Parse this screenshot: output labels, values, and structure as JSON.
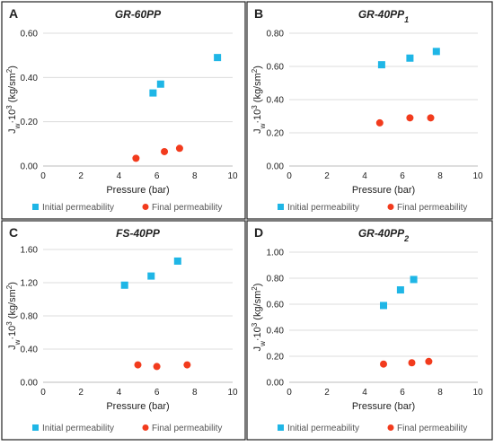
{
  "chart_data": [
    {
      "type": "scatter",
      "panel_label": "A",
      "title": "GR-60PP",
      "title_sub": "",
      "xlabel": "Pressure (bar)",
      "ylabel": "Jw·10³ (kg/sm²)",
      "ylabel_parts": {
        "main": "J",
        "sub": "w",
        "mid": "·10",
        "sup1": "3",
        "rest": " (kg/sm",
        "sup2": "2",
        "end": ")"
      },
      "xlim": [
        0,
        10
      ],
      "ylim": [
        0,
        0.6
      ],
      "xticks": [
        0,
        2,
        4,
        6,
        8,
        10
      ],
      "yticks": [
        0,
        0.2,
        0.4,
        0.6
      ],
      "xtick_labels": [
        "0",
        "2",
        "4",
        "6",
        "8",
        "10"
      ],
      "ytick_labels": [
        "0.00",
        "0.20",
        "0.40",
        "0.60"
      ],
      "series": [
        {
          "name": "Initial permeability",
          "marker": "square",
          "color": "#1fb6e6",
          "points": [
            [
              5.8,
              0.33
            ],
            [
              6.2,
              0.37
            ],
            [
              9.2,
              0.49
            ]
          ]
        },
        {
          "name": "Final permeability",
          "marker": "circle",
          "color": "#f23b1d",
          "points": [
            [
              4.9,
              0.035
            ],
            [
              6.4,
              0.065
            ],
            [
              7.2,
              0.08
            ]
          ]
        }
      ],
      "grid": "horizontal",
      "legend_position": "bottom"
    },
    {
      "type": "scatter",
      "panel_label": "B",
      "title": "GR-40PP",
      "title_sub": "1",
      "xlabel": "Pressure (bar)",
      "ylabel": "Jw·10³ (kg/sm²)",
      "ylabel_parts": {
        "main": "J",
        "sub": "w",
        "mid": "·10",
        "sup1": "3",
        "rest": " (kg/sm",
        "sup2": "2",
        "end": ")"
      },
      "xlim": [
        0,
        10
      ],
      "ylim": [
        0,
        0.8
      ],
      "xticks": [
        0,
        2,
        4,
        6,
        8,
        10
      ],
      "yticks": [
        0,
        0.2,
        0.4,
        0.6,
        0.8
      ],
      "xtick_labels": [
        "0",
        "2",
        "4",
        "6",
        "8",
        "10"
      ],
      "ytick_labels": [
        "0.00",
        "0.20",
        "0.40",
        "0.60",
        "0.80"
      ],
      "series": [
        {
          "name": "Initial permeability",
          "marker": "square",
          "color": "#1fb6e6",
          "points": [
            [
              4.9,
              0.61
            ],
            [
              6.4,
              0.65
            ],
            [
              7.8,
              0.69
            ]
          ]
        },
        {
          "name": "Final permeability",
          "marker": "circle",
          "color": "#f23b1d",
          "points": [
            [
              4.8,
              0.26
            ],
            [
              6.4,
              0.29
            ],
            [
              7.5,
              0.29
            ]
          ]
        }
      ],
      "grid": "horizontal",
      "legend_position": "bottom"
    },
    {
      "type": "scatter",
      "panel_label": "C",
      "title": "FS-40PP",
      "title_sub": "",
      "xlabel": "Pressure (bar)",
      "ylabel": "Jw·10³ (kg/sm²)",
      "ylabel_parts": {
        "main": "J",
        "sub": "w",
        "mid": "·10",
        "sup1": "3",
        "rest": " (kg/sm",
        "sup2": "2",
        "end": ")"
      },
      "xlim": [
        0,
        10
      ],
      "ylim": [
        0,
        1.6
      ],
      "xticks": [
        0,
        2,
        4,
        6,
        8,
        10
      ],
      "yticks": [
        0,
        0.4,
        0.8,
        1.2,
        1.6
      ],
      "xtick_labels": [
        "0",
        "2",
        "4",
        "6",
        "8",
        "10"
      ],
      "ytick_labels": [
        "0.00",
        "0.40",
        "0.80",
        "1.20",
        "1.60"
      ],
      "series": [
        {
          "name": "Initial permeability",
          "marker": "square",
          "color": "#1fb6e6",
          "points": [
            [
              4.3,
              1.17
            ],
            [
              5.7,
              1.28
            ],
            [
              7.1,
              1.46
            ]
          ]
        },
        {
          "name": "Final permeability",
          "marker": "circle",
          "color": "#f23b1d",
          "points": [
            [
              5.0,
              0.21
            ],
            [
              6.0,
              0.19
            ],
            [
              7.6,
              0.21
            ]
          ]
        }
      ],
      "grid": "horizontal",
      "legend_position": "bottom"
    },
    {
      "type": "scatter",
      "panel_label": "D",
      "title": "GR-40PP",
      "title_sub": "2",
      "xlabel": "Pressure (bar)",
      "ylabel": "Jw·10³ (kg/sm²)",
      "ylabel_parts": {
        "main": "J",
        "sub": "w",
        "mid": "·10",
        "sup1": "3",
        "rest": " (kg/sm",
        "sup2": "2",
        "end": ")"
      },
      "xlim": [
        0,
        10
      ],
      "ylim": [
        0,
        1.0
      ],
      "xticks": [
        0,
        2,
        4,
        6,
        8,
        10
      ],
      "yticks": [
        0,
        0.2,
        0.4,
        0.6,
        0.8,
        1.0
      ],
      "xtick_labels": [
        "0",
        "2",
        "4",
        "6",
        "8",
        "10"
      ],
      "ytick_labels": [
        "0.00",
        "0.20",
        "0.40",
        "0.60",
        "0.80",
        "1.00"
      ],
      "series": [
        {
          "name": "Initial permeability",
          "marker": "square",
          "color": "#1fb6e6",
          "points": [
            [
              5.0,
              0.59
            ],
            [
              5.9,
              0.71
            ],
            [
              6.6,
              0.79
            ]
          ]
        },
        {
          "name": "Final permeability",
          "marker": "circle",
          "color": "#f23b1d",
          "points": [
            [
              5.0,
              0.14
            ],
            [
              6.5,
              0.15
            ],
            [
              7.4,
              0.16
            ]
          ]
        }
      ],
      "grid": "horizontal",
      "legend_position": "bottom"
    }
  ]
}
